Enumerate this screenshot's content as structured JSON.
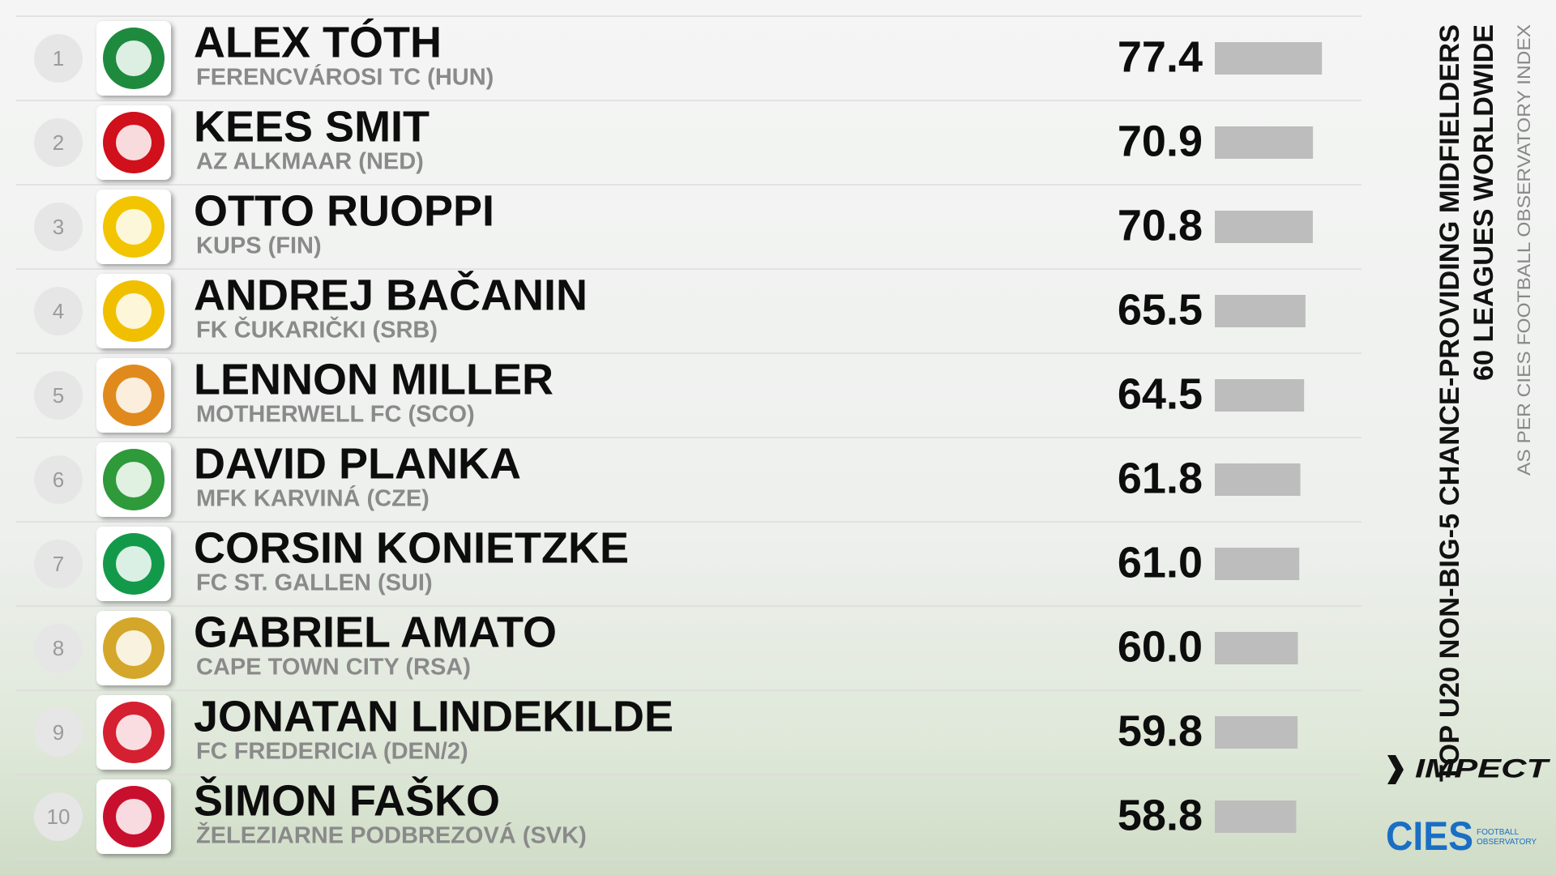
{
  "chart_data": {
    "type": "bar",
    "title": "TOP U20 NON-BIG-5 CHANCE-PROVIDING MIDFIELDERS",
    "subtitle": "60 LEAGUES WORLDWIDE",
    "source": "AS PER CIES FOOTBALL OBSERVATORY INDEX",
    "ranks": [
      1,
      2,
      3,
      4,
      5,
      6,
      7,
      8,
      9,
      10
    ],
    "categories": [
      "ALEX TÓTH",
      "KEES SMIT",
      "OTTO RUOPPI",
      "ANDREJ BAČANIN",
      "LENNON MILLER",
      "DAVID PLANKA",
      "CORSIN KONIETZKE",
      "GABRIEL AMATO",
      "JONATAN LINDEKILDE",
      "ŠIMON FAŠKO"
    ],
    "clubs": [
      "FERENCVÁROSI TC (HUN)",
      "AZ ALKMAAR (NED)",
      "KUPS (FIN)",
      "FK ČUKARIČKI (SRB)",
      "MOTHERWELL FC (SCO)",
      "MFK KARVINÁ (CZE)",
      "FC ST. GALLEN (SUI)",
      "CAPE TOWN CITY (RSA)",
      "FC FREDERICIA (DEN/2)",
      "ŽELEZIARNE PODBREZOVÁ (SVK)"
    ],
    "values": [
      77.4,
      70.9,
      70.8,
      65.5,
      64.5,
      61.8,
      61.0,
      60.0,
      59.8,
      58.8
    ],
    "value_labels": [
      "77.4",
      "70.9",
      "70.8",
      "65.5",
      "64.5",
      "61.8",
      "61.0",
      "60.0",
      "59.8",
      "58.8"
    ],
    "color": "#bdbdbd",
    "logos": {
      "impect": "IMPECT",
      "cies": "CIES",
      "cies_sub": "FOOTBALL OBSERVATORY"
    }
  }
}
